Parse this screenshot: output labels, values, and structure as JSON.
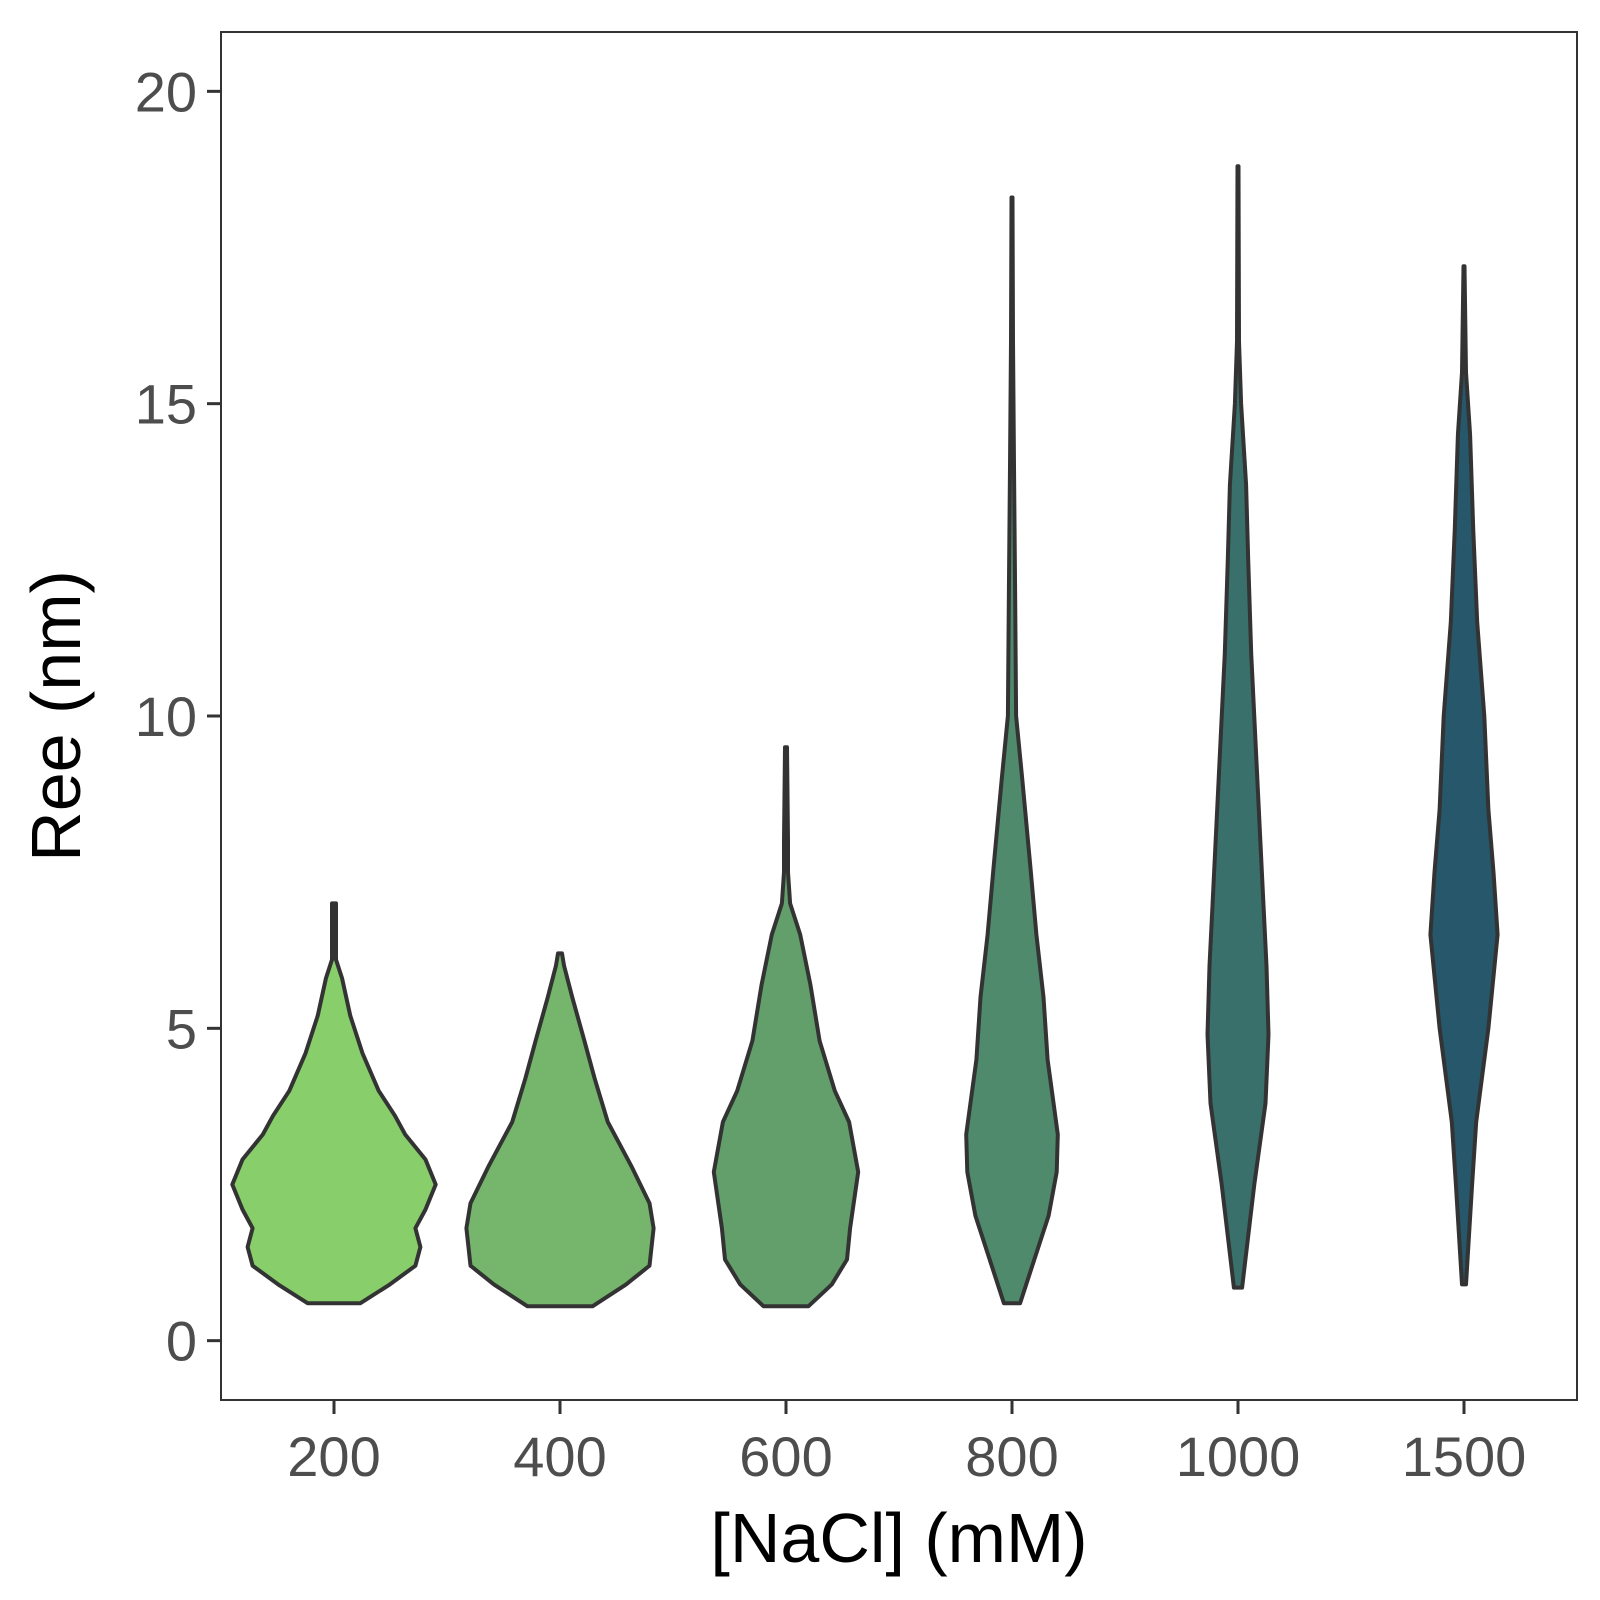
{
  "chart_data": {
    "type": "violin",
    "xlabel": "[NaCl] (mM)",
    "ylabel": "Ree (nm)",
    "ylim": [
      -0.95,
      20.95
    ],
    "yticks": [
      "0",
      "5",
      "10",
      "15",
      "20"
    ],
    "ytick_values": [
      0,
      5,
      10,
      15,
      20
    ],
    "categories": [
      "200",
      "400",
      "600",
      "800",
      "1000",
      "1500"
    ],
    "grid": false,
    "legend": "none",
    "colors": [
      "#88cf6c",
      "#75b66c",
      "#629f6b",
      "#4f8a6c",
      "#3a706b",
      "#26576a"
    ],
    "outline_color": "#333333",
    "violins": [
      {
        "category": "200",
        "profile": [
          [
            0.6,
            0.26
          ],
          [
            0.9,
            0.55
          ],
          [
            1.2,
            0.8
          ],
          [
            1.5,
            0.85
          ],
          [
            1.8,
            0.8
          ],
          [
            2.1,
            0.9
          ],
          [
            2.5,
            1.0
          ],
          [
            2.9,
            0.9
          ],
          [
            3.3,
            0.7
          ],
          [
            3.6,
            0.6
          ],
          [
            4.0,
            0.44
          ],
          [
            4.6,
            0.28
          ],
          [
            5.2,
            0.16
          ],
          [
            5.8,
            0.08
          ],
          [
            6.1,
            0.02
          ],
          [
            7.0,
            0.02
          ]
        ]
      },
      {
        "category": "400",
        "profile": [
          [
            0.55,
            0.32
          ],
          [
            0.9,
            0.65
          ],
          [
            1.2,
            0.88
          ],
          [
            1.8,
            0.92
          ],
          [
            2.2,
            0.88
          ],
          [
            2.8,
            0.7
          ],
          [
            3.5,
            0.47
          ],
          [
            4.2,
            0.34
          ],
          [
            4.8,
            0.24
          ],
          [
            5.5,
            0.12
          ],
          [
            6.0,
            0.04
          ],
          [
            6.2,
            0.02
          ]
        ]
      },
      {
        "category": "600",
        "profile": [
          [
            0.55,
            0.22
          ],
          [
            0.9,
            0.45
          ],
          [
            1.3,
            0.6
          ],
          [
            1.8,
            0.63
          ],
          [
            2.7,
            0.71
          ],
          [
            3.5,
            0.62
          ],
          [
            4.0,
            0.48
          ],
          [
            4.8,
            0.33
          ],
          [
            5.7,
            0.24
          ],
          [
            6.5,
            0.14
          ],
          [
            7.0,
            0.04
          ],
          [
            7.5,
            0.02
          ],
          [
            8.0,
            0.02
          ],
          [
            9.5,
            0.01
          ]
        ]
      },
      {
        "category": "800",
        "profile": [
          [
            0.6,
            0.08
          ],
          [
            1.5,
            0.26
          ],
          [
            2.0,
            0.36
          ],
          [
            2.7,
            0.44
          ],
          [
            3.3,
            0.45
          ],
          [
            3.9,
            0.4
          ],
          [
            4.5,
            0.35
          ],
          [
            5.5,
            0.31
          ],
          [
            6.5,
            0.24
          ],
          [
            7.6,
            0.18
          ],
          [
            9.0,
            0.1
          ],
          [
            10.0,
            0.04
          ],
          [
            12.0,
            0.03
          ],
          [
            14.0,
            0.02
          ],
          [
            16.0,
            0.01
          ],
          [
            18.3,
            0.005
          ]
        ]
      },
      {
        "category": "1000",
        "profile": [
          [
            0.85,
            0.04
          ],
          [
            2.5,
            0.16
          ],
          [
            3.8,
            0.27
          ],
          [
            4.9,
            0.3
          ],
          [
            6.0,
            0.28
          ],
          [
            7.0,
            0.25
          ],
          [
            9.0,
            0.19
          ],
          [
            11.0,
            0.13
          ],
          [
            12.5,
            0.1
          ],
          [
            13.7,
            0.08
          ],
          [
            15.0,
            0.03
          ],
          [
            16.0,
            0.01
          ],
          [
            18.8,
            0.005
          ]
        ]
      },
      {
        "category": "1500",
        "profile": [
          [
            0.9,
            0.02
          ],
          [
            2.5,
            0.08
          ],
          [
            3.5,
            0.12
          ],
          [
            5.0,
            0.24
          ],
          [
            6.5,
            0.33
          ],
          [
            7.5,
            0.29
          ],
          [
            8.5,
            0.24
          ],
          [
            10.0,
            0.2
          ],
          [
            11.5,
            0.13
          ],
          [
            13.0,
            0.09
          ],
          [
            14.5,
            0.06
          ],
          [
            15.5,
            0.02
          ],
          [
            17.2,
            0.005
          ]
        ]
      }
    ]
  }
}
